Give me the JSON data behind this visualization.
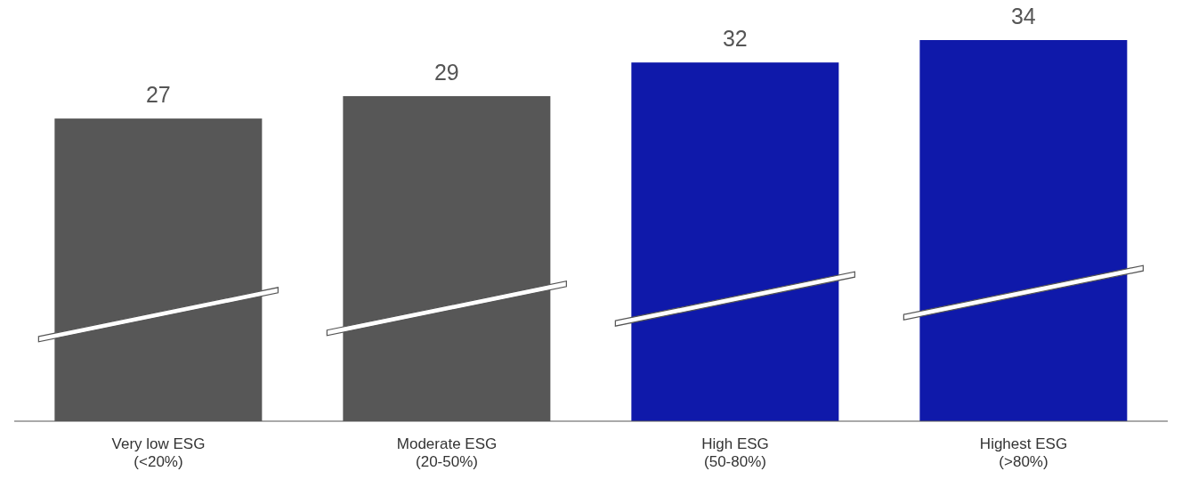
{
  "chart_data": {
    "type": "bar",
    "categories": [
      "Very low ESG\n(<20%)",
      "Moderate ESG\n(20-50%)",
      "High ESG\n(50-80%)",
      "Highest ESG\n(>80%)"
    ],
    "values": [
      27,
      29,
      32,
      34
    ],
    "colors": [
      "#575757",
      "#575757",
      "#0f19aa",
      "#0f19aa"
    ],
    "data_labels": true,
    "grid": false,
    "legend": false
  }
}
